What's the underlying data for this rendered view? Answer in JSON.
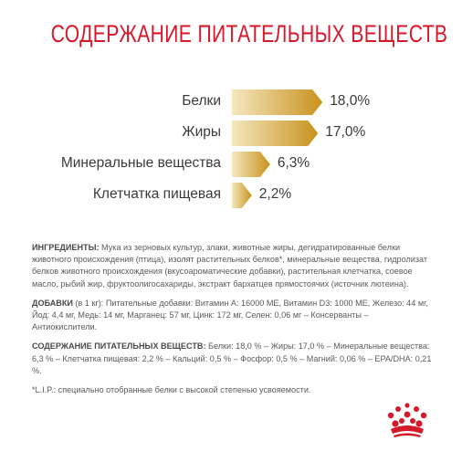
{
  "title": "СОДЕРЖАНИЕ ПИТАТЕЛЬНЫХ ВЕЩЕСТВ",
  "nutrients": [
    {
      "label": "Белки",
      "value": "18,0%",
      "percent": 18.0
    },
    {
      "label": "Жиры",
      "value": "17,0%",
      "percent": 17.0
    },
    {
      "label": "Минеральные вещества",
      "value": "6,3%",
      "percent": 6.3
    },
    {
      "label": "Клетчатка пищевая",
      "value": "2,2%",
      "percent": 2.2
    }
  ],
  "ingredients": {
    "heading": "ИНГРЕДИЕНТЫ:",
    "text": " Мука из зерновых культур, злаки, животные жиры, дегидратированные белки животного происхождения (птица), изолят растительных белков*, минеральные вещества, гидролизат белков животного происхождения (вкусоароматические добавки), растительная клетчатка, соевое масло, рыбий жир, фруктоолигосахариды, экстракт бархатцев прямостоячих (источник лютеина)."
  },
  "additives": {
    "heading": "ДОБАВКИ",
    "unit": " (в 1 кг):",
    "text": " Питательные добавки: Витамин А: 16000 МЕ, Витамин D3: 1000 МЕ, Железо: 44 мг, Йод: 4,4 мг, Медь: 14 мг, Марганец: 57 мг, Цинк: 172 мг, Селен: 0,06 мг – Консерванты – Антиокислители."
  },
  "nutrition_content": {
    "heading": "СОДЕРЖАНИЕ ПИТАТЕЛЬНЫХ ВЕЩЕСТВ:",
    "text": " Белки: 18,0 % – Жиры: 17,0 % – Минеральные вещества: 6,3 % – Клетчатка пищевая: 2,2 % – Кальций: 0,5 % – Фосфор: 0,5 % – Магний: 0,06 % – EPA/DHA: 0,21 %."
  },
  "footnote": "*L.I.P.: специально отобранные белки с высокой степенью усвояемости.",
  "colors": {
    "title": "#d7182a",
    "bar_start": "#f5e7bf",
    "bar_end": "#c8921d",
    "logo": "#d7182a"
  },
  "logo_icon": "crown-icon"
}
